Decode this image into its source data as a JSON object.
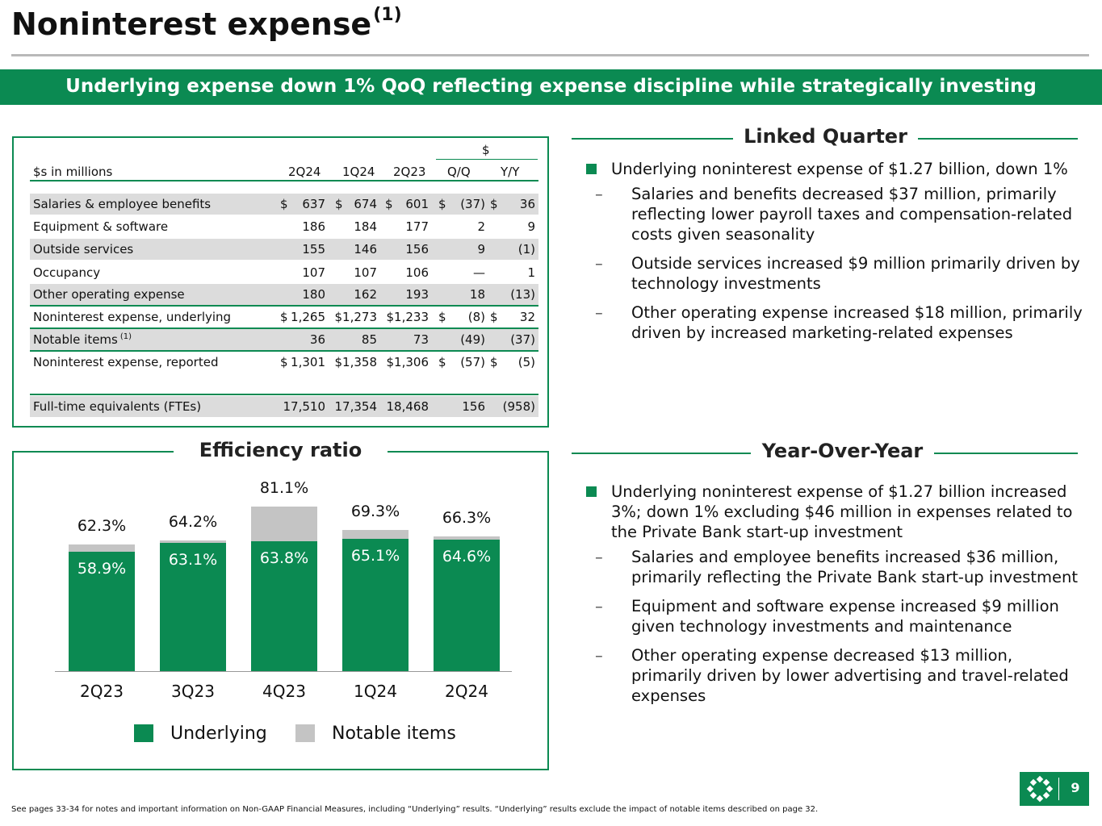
{
  "header": {
    "title": "Noninterest expense",
    "title_sup": "(1)",
    "banner": "Underlying expense down 1% QoQ reflecting expense discipline while strategically investing"
  },
  "table": {
    "group_header": "$",
    "unit_label": "$s in millions",
    "columns": [
      "2Q24",
      "1Q24",
      "2Q23",
      "Q/Q",
      "Y/Y"
    ],
    "rows": [
      {
        "label": "Salaries & employee benefits",
        "v": [
          "637",
          "674",
          "601",
          "(37)",
          "36"
        ],
        "d": [
          "$",
          "$",
          "$",
          "$",
          "$"
        ]
      },
      {
        "label": "Equipment & software",
        "v": [
          "186",
          "184",
          "177",
          "2",
          "9"
        ],
        "d": [
          "",
          "",
          "",
          "",
          ""
        ]
      },
      {
        "label": "Outside services",
        "v": [
          "155",
          "146",
          "156",
          "9",
          "(1)"
        ],
        "d": [
          "",
          "",
          "",
          "",
          ""
        ]
      },
      {
        "label": "Occupancy",
        "v": [
          "107",
          "107",
          "106",
          "—",
          "1"
        ],
        "d": [
          "",
          "",
          "",
          "",
          ""
        ]
      },
      {
        "label": "Other operating expense",
        "v": [
          "180",
          "162",
          "193",
          "18",
          "(13)"
        ],
        "d": [
          "",
          "",
          "",
          "",
          ""
        ]
      },
      {
        "label": "Noninterest expense, underlying",
        "v": [
          "1,265",
          "$1,273",
          "$1,233",
          "(8)",
          "32"
        ],
        "d": [
          "$",
          "",
          "",
          "$",
          "$"
        ]
      },
      {
        "label": "Notable items",
        "label_sup": "(1)",
        "v": [
          "36",
          "85",
          "73",
          "(49)",
          "(37)"
        ],
        "d": [
          "",
          "",
          "",
          "",
          ""
        ]
      },
      {
        "label": "Noninterest expense, reported",
        "v": [
          "1,301",
          "$1,358",
          "$1,306",
          "(57)",
          "(5)"
        ],
        "d": [
          "$",
          "",
          "",
          "$",
          "$"
        ]
      },
      {
        "label": "Full-time equivalents (FTEs)",
        "v": [
          "17,510",
          "17,354",
          "18,468",
          "156",
          "(958)"
        ],
        "d": [
          "",
          "",
          "",
          "",
          ""
        ]
      }
    ]
  },
  "linked_quarter": {
    "heading": "Linked Quarter",
    "bullet": "Underlying noninterest expense of $1.27 billion, down 1%",
    "subs": [
      "Salaries and benefits decreased $37 million, primarily reflecting lower payroll taxes and compensation-related costs given seasonality",
      "Outside services increased $9 million primarily driven by technology investments",
      "Other operating expense increased $18 million, primarily driven by increased marketing-related expenses"
    ]
  },
  "year_over_year": {
    "heading": "Year-Over-Year",
    "bullet": "Underlying noninterest expense of $1.27 billion increased 3%; down 1% excluding $46 million in expenses related to the Private Bank start-up investment",
    "subs": [
      "Salaries and employee benefits increased $36 million, primarily reflecting the Private Bank start-up investment",
      "Equipment and software expense increased $9 million given technology investments and maintenance",
      "Other operating expense decreased $13 million, primarily driven by lower advertising and travel-related expenses"
    ]
  },
  "chart_data": {
    "type": "bar",
    "title": "Efficiency ratio",
    "categories": [
      "2Q23",
      "3Q23",
      "4Q23",
      "1Q24",
      "2Q24"
    ],
    "series": [
      {
        "name": "Underlying",
        "values": [
          58.9,
          63.1,
          63.8,
          65.1,
          64.6
        ],
        "labels": [
          "58.9%",
          "63.1%",
          "63.8%",
          "65.1%",
          "64.6%"
        ],
        "color": "#0b8a52"
      },
      {
        "name": "Notable items",
        "values": [
          3.4,
          1.1,
          17.3,
          4.2,
          1.7
        ],
        "color": "#c4c4c4"
      }
    ],
    "totals": [
      "62.3%",
      "64.2%",
      "81.1%",
      "69.3%",
      "66.3%"
    ],
    "stacked": true,
    "legend": "bottom"
  },
  "footer": {
    "note": "See pages 33-34 for notes and important information on Non-GAAP Financial Measures, including “Underlying” results. “Underlying” results exclude the impact of notable items described on page 32.",
    "page": "9"
  },
  "colors": {
    "brand_green": "#0b8a52",
    "notable_gray": "#c4c4c4",
    "row_shade": "#dcdcdc"
  }
}
